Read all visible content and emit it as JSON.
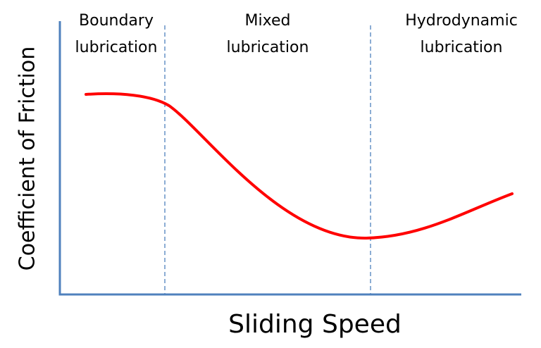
{
  "regions": [
    {
      "lines": [
        "Boundary",
        "lubrication"
      ]
    },
    {
      "lines": [
        "Mixed",
        "lubrication"
      ]
    },
    {
      "lines": [
        "Hydrodynamic",
        "lubrication"
      ]
    }
  ],
  "axes": {
    "y_label": "Coefficient of Friction",
    "x_label": "Sliding Speed"
  }
}
